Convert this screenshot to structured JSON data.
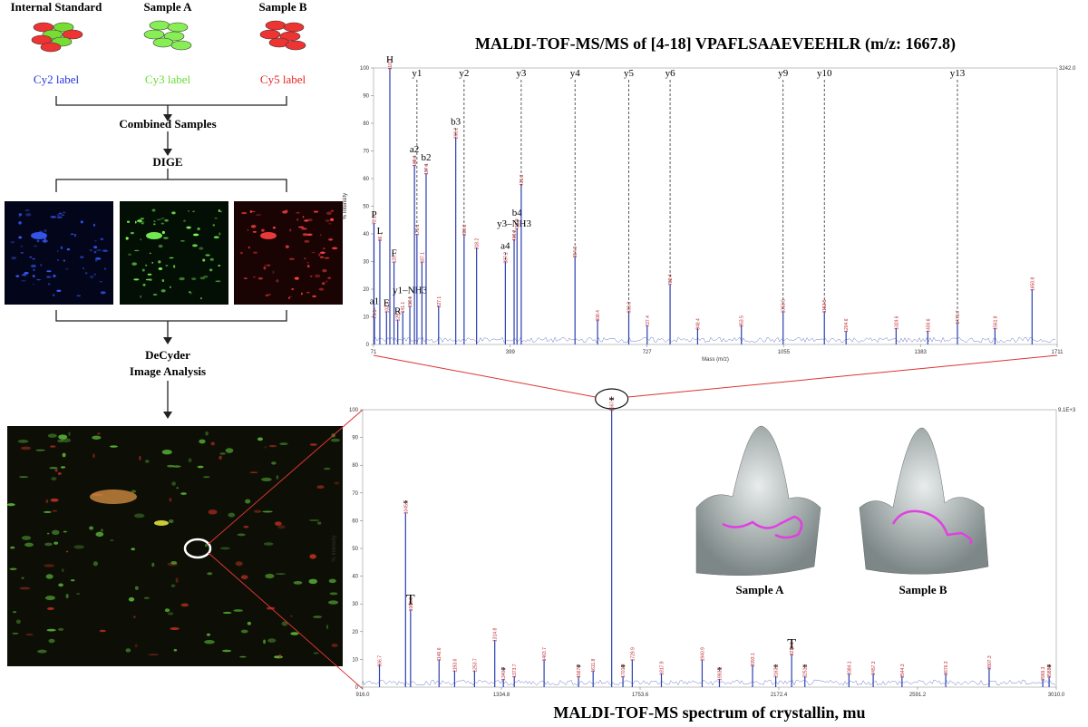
{
  "workflow": {
    "samples": [
      "Internal Standard",
      "Sample A",
      "Sample B"
    ],
    "labels": [
      "Cy2  label",
      "Cy3  label",
      "Cy5  label"
    ],
    "steps": [
      "Combined Samples",
      "DIGE",
      "DeCyder",
      "Image Analysis"
    ]
  },
  "insets": [
    "Sample A",
    "Sample B"
  ],
  "chart_data": [
    {
      "type": "stem",
      "title": "MALDI-TOF-MS/MS of [4-18] VPAFLSAAEVEEHLR (m/z: 1667.8)",
      "x_label": "Mass (m/z)",
      "y_label": "% Intensity",
      "max_label": "3242.0",
      "color": "#2a3fb0",
      "label_color": "#c0282d",
      "xlim": [
        71,
        1711
      ],
      "xticks": [
        71,
        399,
        727,
        1055,
        1383,
        1711
      ],
      "ylim": [
        0,
        100
      ],
      "yticks": [
        0,
        10,
        20,
        30,
        40,
        50,
        60,
        70,
        80,
        90,
        100
      ],
      "x": [
        72.1,
        73.1,
        86.1,
        102.1,
        110.1,
        120.1,
        129.1,
        141.1,
        158.1,
        169.1,
        175.1,
        187.1,
        197.1,
        227.1,
        268.2,
        288.2,
        318.2,
        387.2,
        408.2,
        415.2,
        425.3,
        554.3,
        608.4,
        683.3,
        727.4,
        782.4,
        848.4,
        953.5,
        1053.5,
        1152.5,
        1204.6,
        1324.6,
        1400.6,
        1471.7,
        1561.8,
        1650.8
      ],
      "values": [
        44,
        10,
        38,
        12,
        100,
        30,
        9,
        12,
        14,
        65,
        40,
        30,
        62,
        14,
        75,
        40,
        35,
        30,
        38,
        42,
        58,
        32,
        9,
        12,
        7,
        22,
        6,
        7,
        12,
        12,
        5,
        6,
        5,
        8,
        6,
        20
      ],
      "annotations": [
        "P",
        "a1",
        "L",
        "E",
        "H",
        "F",
        "R",
        null,
        "y1–NH3",
        "a2",
        "y1",
        null,
        "b2",
        null,
        "b3",
        "y2",
        null,
        "a4",
        "y3–NH3",
        "b4",
        "y3",
        "y4",
        null,
        "y5",
        null,
        "y6",
        null,
        null,
        "y9",
        "y10",
        null,
        null,
        null,
        "y13",
        null,
        null
      ]
    },
    {
      "type": "stem",
      "title": "MALDI-TOF-MS spectrum of crystallin, mu",
      "y_label": "% Intensity",
      "max_label": "9.1E+3",
      "highlight_label": "*",
      "color": "#2a3fb0",
      "label_color": "#c0282d",
      "xlim": [
        916,
        3010
      ],
      "xticks": [
        {
          "value": 916,
          "label": "916.0"
        },
        1334.8,
        1753.6,
        2172.4,
        2591.2,
        {
          "value": 3010,
          "label": "3010.0"
        }
      ],
      "ylim": [
        0,
        100
      ],
      "yticks": [
        0,
        10,
        20,
        30,
        40,
        50,
        60,
        70,
        80,
        90,
        100
      ],
      "x": [
        966.7,
        1045.5,
        1060.6,
        1146.6,
        1193.6,
        1253.7,
        1314.8,
        1340.7,
        1373.7,
        1463.7,
        1567.7,
        1611.8,
        1667.8,
        1701.8,
        1729.9,
        1817.9,
        1940.9,
        1993.1,
        2093.1,
        2163.1,
        2211.1,
        2251.1,
        2384.1,
        2457.3,
        2544.3,
        2676.3,
        2807.3,
        2969.3,
        2988.4
      ],
      "values": [
        8,
        63,
        28,
        10,
        6,
        6,
        17,
        3,
        4,
        10,
        4,
        6,
        100,
        4,
        10,
        5,
        10,
        3,
        8,
        4,
        12,
        4,
        5,
        5,
        4,
        5,
        7,
        3,
        4
      ],
      "annotations": [
        null,
        "*",
        "T",
        null,
        null,
        null,
        null,
        "*",
        null,
        null,
        "*",
        null,
        null,
        "*",
        null,
        null,
        null,
        "*",
        null,
        "*",
        "T",
        "*",
        null,
        null,
        null,
        null,
        null,
        null,
        "*"
      ]
    }
  ]
}
